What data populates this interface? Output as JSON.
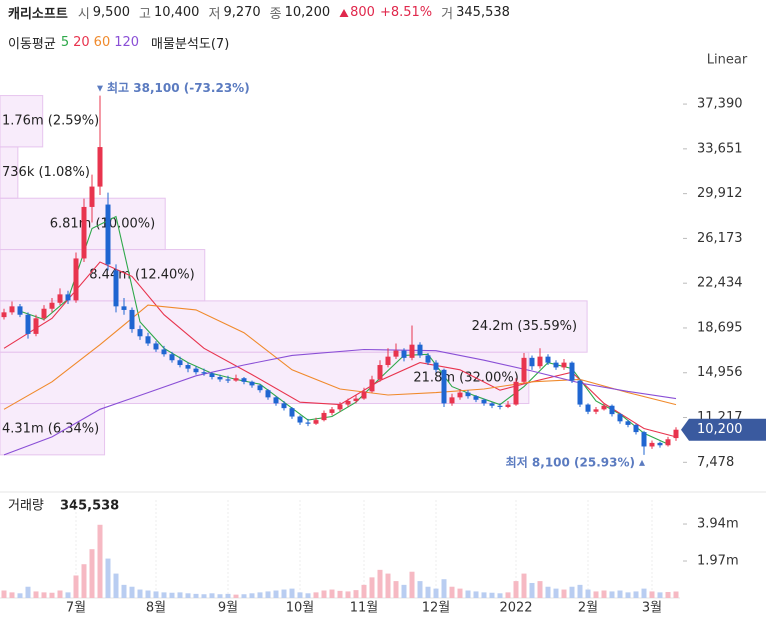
{
  "header": {
    "name": "캐리소프트",
    "open": {
      "label": "시",
      "value": "9,500"
    },
    "high": {
      "label": "고",
      "value": "10,400"
    },
    "low": {
      "label": "저",
      "value": "9,270"
    },
    "close": {
      "label": "종",
      "value": "10,200"
    },
    "change": "800",
    "change_pct": "+8.51%",
    "volume": {
      "label": "거",
      "value": "345,538"
    }
  },
  "chart_data": [
    {
      "type": "candlestick",
      "scale": "Linear",
      "up_color": "#e8344e",
      "down_color": "#1f66d1",
      "xlim": [
        -0.5,
        84.5
      ],
      "ylim": [
        6000,
        39400
      ],
      "yticks": [
        {
          "value": 7478,
          "label": "7,478"
        },
        {
          "value": 11217,
          "label": "11,217"
        },
        {
          "value": 14956,
          "label": "14,956"
        },
        {
          "value": 18695,
          "label": "18,695"
        },
        {
          "value": 22434,
          "label": "22,434"
        },
        {
          "value": 26173,
          "label": "26,173"
        },
        {
          "value": 29912,
          "label": "29,912"
        },
        {
          "value": 33651,
          "label": "33,651"
        },
        {
          "value": 37390,
          "label": "37,390"
        }
      ],
      "open": [
        19600,
        20000,
        20500,
        19800,
        18200,
        19500,
        20300,
        20800,
        21500,
        21000,
        24500,
        28800,
        30500,
        29000,
        23500,
        20500,
        20200,
        18600,
        18000,
        17400,
        16900,
        16500,
        16000,
        15600,
        15300,
        15000,
        14900,
        14600,
        14400,
        14300,
        14500,
        14200,
        13900,
        13500,
        12900,
        12400,
        12000,
        11300,
        10800,
        10700,
        11000,
        11600,
        11900,
        12300,
        12600,
        12800,
        13400,
        14400,
        15600,
        16300,
        16800,
        16200,
        17300,
        16400,
        15800,
        15200,
        12400,
        12900,
        13300,
        13000,
        12700,
        12400,
        12200,
        12100,
        12300,
        14200,
        16200,
        15500,
        16300,
        15800,
        15400,
        15800,
        14300,
        12300,
        11700,
        11900,
        12200,
        11500,
        10900,
        10600,
        10000,
        8800,
        9100,
        8900,
        9500
      ],
      "high": [
        20300,
        20900,
        20700,
        20000,
        19800,
        20600,
        21200,
        22000,
        21800,
        25000,
        29500,
        31500,
        38100,
        30000,
        24000,
        21200,
        20400,
        18900,
        18300,
        17600,
        17200,
        16700,
        16300,
        15800,
        15500,
        15300,
        15000,
        14800,
        14700,
        14800,
        14600,
        14300,
        14000,
        13600,
        13000,
        12600,
        12100,
        11400,
        11100,
        11200,
        11800,
        12100,
        12500,
        12800,
        13100,
        13700,
        14700,
        16000,
        17000,
        17400,
        17000,
        18900,
        17500,
        16600,
        16000,
        15300,
        13200,
        13600,
        13500,
        13100,
        12800,
        12500,
        12400,
        12600,
        14500,
        16600,
        16400,
        17000,
        16500,
        16000,
        16100,
        15900,
        14400,
        12400,
        12100,
        12400,
        12300,
        11600,
        11000,
        10700,
        10100,
        9300,
        9200,
        9600,
        10400
      ],
      "low": [
        19400,
        19800,
        19600,
        17800,
        18000,
        19300,
        20000,
        20600,
        20700,
        20800,
        24200,
        27500,
        29800,
        23500,
        20000,
        19800,
        18300,
        17700,
        17200,
        16700,
        16300,
        15800,
        15400,
        15000,
        14800,
        14700,
        14400,
        14200,
        14100,
        14200,
        14000,
        13700,
        13300,
        12700,
        12200,
        11800,
        11100,
        10600,
        10500,
        10600,
        10900,
        11400,
        11700,
        12100,
        12400,
        12700,
        13300,
        14200,
        15400,
        16100,
        15900,
        16000,
        16200,
        15600,
        15000,
        12100,
        12200,
        12700,
        12800,
        12500,
        12200,
        12000,
        11900,
        12000,
        12200,
        14000,
        15200,
        15300,
        15600,
        15200,
        15200,
        14100,
        12100,
        11500,
        11500,
        11800,
        11300,
        10700,
        10400,
        9800,
        8100,
        8600,
        8700,
        8800,
        9270
      ],
      "close": [
        20000,
        20500,
        19800,
        18200,
        19500,
        20300,
        20800,
        21500,
        21000,
        24500,
        28800,
        30500,
        33800,
        24000,
        20500,
        20200,
        18600,
        18000,
        17400,
        16900,
        16500,
        16000,
        15600,
        15300,
        15000,
        14900,
        14600,
        14400,
        14300,
        14500,
        14200,
        13900,
        13500,
        12900,
        12400,
        12000,
        11300,
        10800,
        10700,
        11000,
        11600,
        11900,
        12300,
        12600,
        12800,
        13400,
        14400,
        15600,
        16300,
        16800,
        16200,
        17300,
        16400,
        15800,
        15200,
        12400,
        12900,
        13300,
        13000,
        12700,
        12400,
        12200,
        12100,
        12300,
        14200,
        16200,
        15500,
        16300,
        15800,
        15400,
        15800,
        14300,
        12300,
        11700,
        11900,
        12200,
        11500,
        10900,
        10600,
        10000,
        8800,
        9100,
        8900,
        9400,
        10200
      ],
      "moving_averages": {
        "label": "이동평균",
        "series": [
          {
            "name": "5",
            "color": "#2ea84a",
            "x": [
              2,
              5,
              8,
              11,
              14,
              17,
              20,
              23,
              26,
              29,
              32,
              35,
              38,
              41,
              44,
              47,
              50,
              53,
              56,
              59,
              62,
              65,
              68,
              71,
              74,
              77,
              80,
              83
            ],
            "values": [
              20100,
              19400,
              21100,
              27000,
              28000,
              19200,
              17000,
              15800,
              14900,
              14400,
              14000,
              12500,
              11000,
              11300,
              12500,
              14500,
              16400,
              16500,
              13800,
              13000,
              12300,
              13800,
              15800,
              15300,
              12600,
              11500,
              9900,
              9000
            ]
          },
          {
            "name": "20",
            "color": "#e8344e",
            "x": [
              0,
              6,
              12,
              16,
              20,
              25,
              31,
              37,
              42,
              47,
              52,
              57,
              62,
              66,
              71,
              75,
              80,
              84
            ],
            "values": [
              17000,
              19500,
              24200,
              23000,
              19800,
              17000,
              14800,
              12500,
              12300,
              14300,
              15800,
              15200,
              13500,
              14200,
              15000,
              12400,
              10300,
              9600
            ]
          },
          {
            "name": "60",
            "color": "#f08a2c",
            "x": [
              0,
              6,
              12,
              18,
              24,
              30,
              36,
              42,
              48,
              54,
              60,
              66,
              72,
              78,
              84
            ],
            "values": [
              11900,
              14200,
              17300,
              20600,
              20200,
              18300,
              15200,
              13600,
              13100,
              13300,
              13600,
              14200,
              14400,
              13300,
              12300
            ]
          },
          {
            "name": "120",
            "color": "#8a4fd6",
            "x": [
              0,
              6,
              12,
              18,
              24,
              30,
              36,
              45,
              54,
              60,
              66,
              72,
              78,
              84
            ],
            "values": [
              8100,
              9600,
              11900,
              13300,
              14700,
              15600,
              16400,
              16900,
              16800,
              16000,
              15100,
              14100,
              13400,
              12800
            ]
          }
        ]
      },
      "volume_profile": {
        "label": "매물분석도(7)",
        "color": "#f3dcf7",
        "border": "#e6c4ee",
        "bins": [
          8100,
          12386,
          16671,
          20957,
          25243,
          29529,
          33814,
          38100
        ],
        "values": [
          4310000,
          21800000,
          24200000,
          8440000,
          6810000,
          736000,
          1760000
        ],
        "value_labels": [
          "4.31m (6.34%)",
          "21.8m (32.00%)",
          "24.2m (35.59%)",
          "8.44m (12.40%)",
          "6.81m (10.00%)",
          "736k (1.08%)",
          "1.76m (2.59%)"
        ]
      },
      "annotations": [
        {
          "text": "최고 38,100 (-73.23%)",
          "x": 12,
          "y": 38100
        },
        {
          "text": "최저 8,100 (25.93%)",
          "x": 80,
          "y": 8100
        }
      ],
      "last_price": {
        "value": 10200,
        "label": "10,200"
      },
      "last_price_color": "#3a5a9f"
    },
    {
      "type": "bar",
      "title": "거래량",
      "value_label": "345,538",
      "up_color": "#f6b9c3",
      "down_color": "#b9cdf1",
      "xlim": [
        -0.5,
        84.5
      ],
      "ylim": [
        0,
        5220000
      ],
      "yticks": [
        {
          "value": 1970000,
          "label": "1.97m"
        },
        {
          "value": 3940000,
          "label": "3.94m"
        }
      ],
      "xticks": [
        {
          "value": 9,
          "label": "7월"
        },
        {
          "value": 19,
          "label": "8월"
        },
        {
          "value": 28,
          "label": "9월"
        },
        {
          "value": 37,
          "label": "10월"
        },
        {
          "value": 45,
          "label": "11월"
        },
        {
          "value": 54,
          "label": "12월"
        },
        {
          "value": 64,
          "label": "2022"
        },
        {
          "value": 73,
          "label": "2월"
        },
        {
          "value": 81,
          "label": "3월"
        }
      ],
      "values": [
        400000,
        300000,
        250000,
        600000,
        350000,
        300000,
        280000,
        400000,
        300000,
        1200000,
        1800000,
        2600000,
        3900000,
        2100000,
        1300000,
        700000,
        600000,
        450000,
        400000,
        350000,
        300000,
        280000,
        300000,
        250000,
        220000,
        200000,
        250000,
        200000,
        220000,
        180000,
        200000,
        250000,
        300000,
        350000,
        400000,
        450000,
        500000,
        300000,
        250000,
        300000,
        400000,
        450000,
        380000,
        350000,
        420000,
        700000,
        1100000,
        1500000,
        1300000,
        900000,
        700000,
        1400000,
        900000,
        600000,
        500000,
        1000000,
        600000,
        500000,
        400000,
        350000,
        300000,
        280000,
        250000,
        300000,
        900000,
        1300000,
        800000,
        900000,
        600000,
        500000,
        450000,
        600000,
        700000,
        450000,
        350000,
        400000,
        350000,
        400000,
        300000,
        350000,
        500000,
        350000,
        300000,
        320000,
        345538
      ]
    }
  ]
}
